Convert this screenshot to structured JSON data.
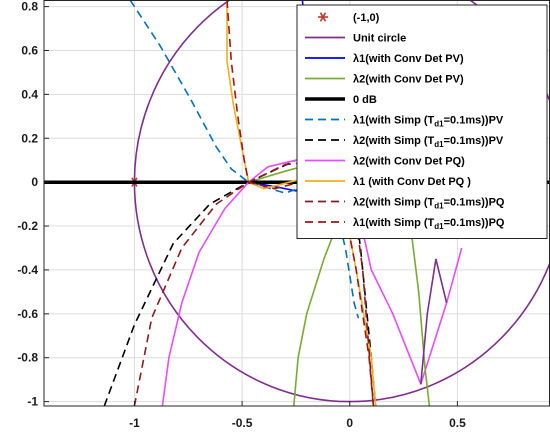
{
  "chart_data": {
    "type": "line",
    "title": "",
    "xlabel": "",
    "ylabel": "",
    "xlim": [
      -1.42,
      0.93
    ],
    "ylim": [
      -1.02,
      0.83
    ],
    "grid": true,
    "legend_position": "top-right",
    "xticks": [
      -1,
      -0.5,
      0,
      0.5
    ],
    "xtick_labels": [
      "-1",
      "-0.5",
      "0",
      "0.5"
    ],
    "yticks": [
      0.8,
      0.6,
      0.4,
      0.2,
      0,
      -0.2,
      -0.4,
      -0.6,
      -0.8,
      -1
    ],
    "ytick_labels": [
      "0.8",
      "0.6",
      "0.4",
      "0.2",
      "0",
      "-0.2",
      "-0.4",
      "-0.6",
      "-0.8",
      "-1"
    ],
    "series": [
      {
        "name": "(-1,0)",
        "color": "#c0392b",
        "style": "marker-star",
        "points": [
          [
            -1,
            0
          ]
        ]
      },
      {
        "name": "Unit circle",
        "color": "#7e2f8e",
        "style": "solid",
        "center": [
          0,
          0
        ],
        "radius": 1
      },
      {
        "name": "λ1(with Conv Det PV)",
        "color": "#0000ff",
        "style": "solid",
        "points": [
          [
            -0.22,
            0.83
          ],
          [
            -0.2,
            0.6
          ],
          [
            -0.21,
            0.45
          ],
          [
            -0.19,
            0.3
          ],
          [
            -0.16,
            0.14
          ],
          [
            -0.18,
            0.03
          ],
          [
            -0.25,
            -0.04
          ],
          [
            -0.35,
            -0.02
          ],
          [
            -0.47,
            0.0
          ]
        ]
      },
      {
        "name": "λ2(with Conv Det  PV)",
        "color": "#77ac30",
        "style": "solid",
        "points": [
          [
            -0.47,
            0.0
          ],
          [
            -0.3,
            0.05
          ],
          [
            -0.15,
            0.09
          ],
          [
            -0.05,
            0.1
          ],
          [
            0.0,
            0.05
          ],
          [
            -0.03,
            -0.12
          ],
          [
            -0.12,
            -0.35
          ],
          [
            -0.2,
            -0.6
          ],
          [
            -0.24,
            -0.8
          ],
          [
            -0.26,
            -1.02
          ]
        ]
      },
      {
        "name": "0 dB",
        "color": "#000000",
        "style": "thick",
        "points": [
          [
            -1.42,
            0
          ],
          [
            0.93,
            0
          ]
        ]
      },
      {
        "name": "λ1(with Simp (T_d1=0.1ms))PV",
        "color": "#0072bd",
        "style": "dashed",
        "points": [
          [
            -1.02,
            0.83
          ],
          [
            -0.88,
            0.62
          ],
          [
            -0.74,
            0.38
          ],
          [
            -0.62,
            0.16
          ],
          [
            -0.55,
            0.06
          ],
          [
            -0.47,
            0.0
          ],
          [
            -0.3,
            -0.05
          ],
          [
            -0.1,
            0.02
          ],
          [
            -0.02,
            -0.3
          ],
          [
            0.02,
            -0.55
          ],
          [
            0.04,
            -0.62
          ]
        ]
      },
      {
        "name": "λ2(with Simp (T_d1=0.1ms))PV",
        "color": "#000000",
        "style": "dashed",
        "points": [
          [
            -1.14,
            -1.02
          ],
          [
            -1.0,
            -0.65
          ],
          [
            -0.82,
            -0.28
          ],
          [
            -0.65,
            -0.1
          ],
          [
            -0.47,
            0.0
          ],
          [
            -0.25,
            0.1
          ],
          [
            -0.1,
            0.12
          ],
          [
            0.0,
            0.08
          ],
          [
            0.05,
            -0.3
          ],
          [
            0.1,
            -0.8
          ],
          [
            0.12,
            -1.02
          ]
        ]
      },
      {
        "name": "λ2(with Conv Det  PQ)",
        "color": "#e64dff",
        "style": "solid",
        "points": [
          [
            -0.87,
            -1.02
          ],
          [
            -0.84,
            -0.8
          ],
          [
            -0.78,
            -0.55
          ],
          [
            -0.7,
            -0.32
          ],
          [
            -0.58,
            -0.12
          ],
          [
            -0.47,
            0.0
          ],
          [
            -0.38,
            0.07
          ],
          [
            -0.25,
            0.1
          ],
          [
            -0.1,
            0.1
          ],
          [
            0.0,
            0.04
          ],
          [
            0.1,
            -0.4
          ],
          [
            0.2,
            -0.6
          ],
          [
            0.33,
            -0.92
          ],
          [
            0.45,
            -0.55
          ],
          [
            0.52,
            -0.3
          ]
        ]
      },
      {
        "name": "λ1 (with Conv Det PQ )",
        "color": "#edb120",
        "style": "solid",
        "points": [
          [
            -0.57,
            0.83
          ],
          [
            -0.57,
            0.55
          ],
          [
            -0.54,
            0.35
          ],
          [
            -0.5,
            0.15
          ],
          [
            -0.47,
            0.0
          ],
          [
            -0.4,
            -0.03
          ],
          [
            -0.2,
            0.02
          ],
          [
            -0.05,
            0.02
          ],
          [
            0.03,
            -0.4
          ],
          [
            0.1,
            -0.8
          ],
          [
            0.12,
            -1.02
          ]
        ]
      },
      {
        "name": "λ2(with Simp (T_d1=0.1ms))PQ",
        "color": "#8b1a1a",
        "style": "dashed",
        "points": [
          [
            -1.0,
            -1.02
          ],
          [
            -0.92,
            -0.62
          ],
          [
            -0.78,
            -0.3
          ],
          [
            -0.62,
            -0.1
          ],
          [
            -0.47,
            0.0
          ],
          [
            -0.3,
            0.08
          ],
          [
            -0.1,
            0.1
          ],
          [
            0.0,
            0.04
          ],
          [
            0.06,
            -0.4
          ],
          [
            0.1,
            -0.9
          ],
          [
            0.11,
            -1.02
          ]
        ]
      },
      {
        "name": "λ1(with Simp (T_d1=0.1ms))PQ",
        "color": "#a31515",
        "style": "dashed",
        "points": [
          [
            -0.57,
            0.83
          ],
          [
            -0.55,
            0.55
          ],
          [
            -0.52,
            0.3
          ],
          [
            -0.49,
            0.1
          ],
          [
            -0.47,
            0.0
          ],
          [
            -0.35,
            -0.03
          ],
          [
            -0.15,
            0.02
          ],
          [
            -0.05,
            0.01
          ],
          [
            0.03,
            -0.4
          ],
          [
            0.09,
            -0.8
          ],
          [
            0.11,
            -1.02
          ]
        ]
      }
    ],
    "extra_curves": [
      {
        "color": "#77ac30",
        "points": [
          [
            0.28,
            -0.18
          ],
          [
            0.32,
            -0.5
          ],
          [
            0.35,
            -0.85
          ],
          [
            0.37,
            -1.02
          ]
        ]
      },
      {
        "color": "#7e2f8e",
        "points": [
          [
            0.33,
            -0.92
          ],
          [
            0.36,
            -0.6
          ],
          [
            0.4,
            -0.35
          ],
          [
            0.45,
            -0.55
          ]
        ]
      }
    ],
    "legend": [
      {
        "label": "(-1,0)",
        "sub": "",
        "tail": "",
        "color": "#c0392b",
        "style": "marker-star"
      },
      {
        "label": "Unit circle",
        "sub": "",
        "tail": "",
        "color": "#7e2f8e",
        "style": "solid"
      },
      {
        "label": "λ1(with Conv Det PV)",
        "sub": "",
        "tail": "",
        "color": "#0000ff",
        "style": "solid"
      },
      {
        "label": "λ2(with Conv Det  PV)",
        "sub": "",
        "tail": "",
        "color": "#77ac30",
        "style": "solid"
      },
      {
        "label": "0 dB",
        "sub": "",
        "tail": "",
        "color": "#000000",
        "style": "thick"
      },
      {
        "label": "λ1(with Simp (T",
        "sub": "d1",
        "tail": "=0.1ms))PV",
        "color": "#0072bd",
        "style": "dashed"
      },
      {
        "label": "λ2(with Simp (T",
        "sub": "d1",
        "tail": "=0.1ms))PV",
        "color": "#000000",
        "style": "dashed"
      },
      {
        "label": "λ2(with Conv Det  PQ)",
        "sub": "",
        "tail": "",
        "color": "#e64dff",
        "style": "solid"
      },
      {
        "label": "λ1 (with Conv Det PQ )",
        "sub": "",
        "tail": "",
        "color": "#edb120",
        "style": "solid"
      },
      {
        "label": "λ2(with Simp (T",
        "sub": "d1",
        "tail": "=0.1ms))PQ",
        "color": "#8b1a1a",
        "style": "dashed"
      },
      {
        "label": "λ1(with Simp (T",
        "sub": "d1",
        "tail": "=0.1ms))PQ",
        "color": "#a31515",
        "style": "dashed"
      }
    ]
  }
}
